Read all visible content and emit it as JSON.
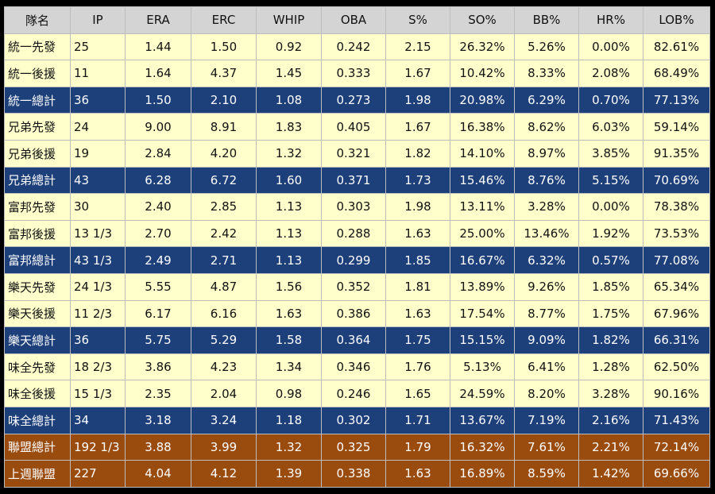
{
  "table": {
    "header": [
      "隊名",
      "IP",
      "ERA",
      "ERC",
      "WHIP",
      "OBA",
      "S%",
      "SO%",
      "BB%",
      "HR%",
      "LOB%"
    ],
    "rows": [
      [
        "統一先發",
        "25",
        "1.44",
        "1.50",
        "0.92",
        "0.242",
        "2.15",
        "26.32%",
        "5.26%",
        "0.00%",
        "82.61%"
      ],
      [
        "統一後援",
        "11",
        "1.64",
        "4.37",
        "1.45",
        "0.333",
        "1.67",
        "10.42%",
        "8.33%",
        "2.08%",
        "68.49%"
      ],
      [
        "統一總計",
        "36",
        "1.50",
        "2.10",
        "1.08",
        "0.273",
        "1.98",
        "20.98%",
        "6.29%",
        "0.70%",
        "77.13%"
      ],
      [
        "兄弟先發",
        "24",
        "9.00",
        "8.91",
        "1.83",
        "0.405",
        "1.67",
        "16.38%",
        "8.62%",
        "6.03%",
        "59.14%"
      ],
      [
        "兄弟後援",
        "19",
        "2.84",
        "4.20",
        "1.32",
        "0.321",
        "1.82",
        "14.10%",
        "8.97%",
        "3.85%",
        "91.35%"
      ],
      [
        "兄弟總計",
        "43",
        "6.28",
        "6.72",
        "1.60",
        "0.371",
        "1.73",
        "15.46%",
        "8.76%",
        "5.15%",
        "70.69%"
      ],
      [
        "富邦先發",
        "30",
        "2.40",
        "2.85",
        "1.13",
        "0.303",
        "1.98",
        "13.11%",
        "3.28%",
        "0.00%",
        "78.38%"
      ],
      [
        "富邦後援",
        "13 1/3",
        "2.70",
        "2.42",
        "1.13",
        "0.288",
        "1.63",
        "25.00%",
        "13.46%",
        "1.92%",
        "73.53%"
      ],
      [
        "富邦總計",
        "43 1/3",
        "2.49",
        "2.71",
        "1.13",
        "0.299",
        "1.85",
        "16.67%",
        "6.32%",
        "0.57%",
        "77.08%"
      ],
      [
        "樂天先發",
        "24 1/3",
        "5.55",
        "4.87",
        "1.56",
        "0.352",
        "1.81",
        "13.89%",
        "9.26%",
        "1.85%",
        "65.34%"
      ],
      [
        "樂天後援",
        "11 2/3",
        "6.17",
        "6.16",
        "1.63",
        "0.386",
        "1.63",
        "17.54%",
        "8.77%",
        "1.75%",
        "67.96%"
      ],
      [
        "樂天總計",
        "36",
        "5.75",
        "5.29",
        "1.58",
        "0.364",
        "1.75",
        "15.15%",
        "9.09%",
        "1.82%",
        "66.31%"
      ],
      [
        "味全先發",
        "18 2/3",
        "3.86",
        "4.23",
        "1.34",
        "0.346",
        "1.76",
        "5.13%",
        "6.41%",
        "1.28%",
        "62.50%"
      ],
      [
        "味全後援",
        "15 1/3",
        "2.35",
        "2.04",
        "0.98",
        "0.246",
        "1.65",
        "24.59%",
        "8.20%",
        "3.28%",
        "90.16%"
      ],
      [
        "味全總計",
        "34",
        "3.18",
        "3.24",
        "1.18",
        "0.302",
        "1.71",
        "13.67%",
        "7.19%",
        "2.16%",
        "71.43%"
      ],
      [
        "聯盟總計",
        "192 1/3",
        "3.88",
        "3.99",
        "1.32",
        "0.325",
        "1.79",
        "16.32%",
        "7.61%",
        "2.21%",
        "72.14%"
      ],
      [
        "上週聯盟",
        "227",
        "4.04",
        "4.12",
        "1.39",
        "0.338",
        "1.63",
        "16.89%",
        "8.59%",
        "1.42%",
        "69.66%"
      ]
    ]
  }
}
